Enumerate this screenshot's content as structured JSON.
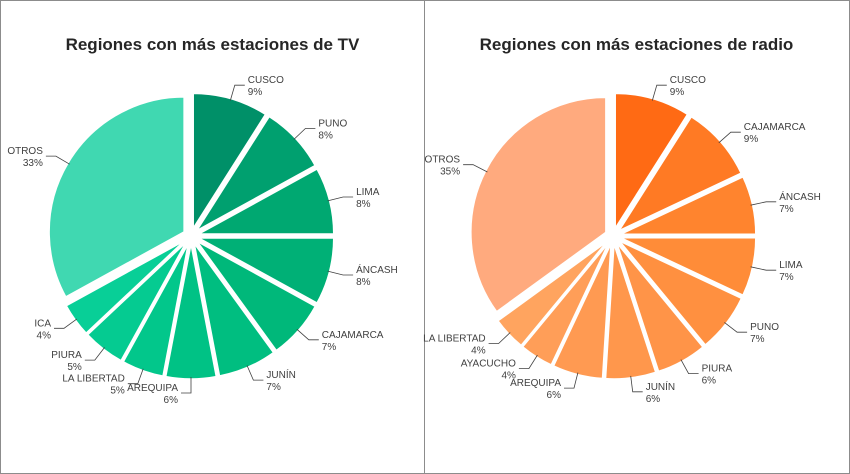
{
  "chart_data": [
    {
      "type": "pie",
      "title": "Regiones con más estaciones de TV",
      "categories": [
        "CUSCO",
        "PUNO",
        "LIMA",
        "ÁNCASH",
        "CAJAMARCA",
        "JUNÍN",
        "AREQUIPA",
        "LA LIBERTAD",
        "PIURA",
        "ICA",
        "OTROS"
      ],
      "values": [
        9,
        8,
        8,
        8,
        7,
        7,
        6,
        5,
        5,
        4,
        33
      ],
      "value_labels": [
        "9%",
        "8%",
        "8%",
        "8%",
        "7%",
        "7%",
        "6%",
        "5%",
        "5%",
        "4%",
        "33%"
      ],
      "colors": [
        "#009068",
        "#00A06F",
        "#00A871",
        "#00B076",
        "#00B87A",
        "#00BE80",
        "#00C285",
        "#02C78B",
        "#05CB91",
        "#08CF97",
        "#40D8B1"
      ],
      "exploded": true
    },
    {
      "type": "pie",
      "title": "Regiones con más estaciones de radio",
      "categories": [
        "CUSCO",
        "CAJAMARCA",
        "ÁNCASH",
        "LIMA",
        "PUNO",
        "PIURA",
        "JUNÍN",
        "AREQUIPA",
        "AYACUCHO",
        "LA LIBERTAD",
        "OTROS"
      ],
      "values": [
        9,
        9,
        7,
        7,
        7,
        6,
        6,
        6,
        4,
        4,
        35
      ],
      "value_labels": [
        "9%",
        "9%",
        "7%",
        "7%",
        "7%",
        "6%",
        "6%",
        "6%",
        "4%",
        "4%",
        "35%"
      ],
      "colors": [
        "#FF6A14",
        "#FF7A24",
        "#FF842E",
        "#FF8C38",
        "#FF9040",
        "#FF9448",
        "#FF974C",
        "#FF9A52",
        "#FF9E58",
        "#FFA45F",
        "#FFAA7E"
      ],
      "exploded": true
    }
  ]
}
